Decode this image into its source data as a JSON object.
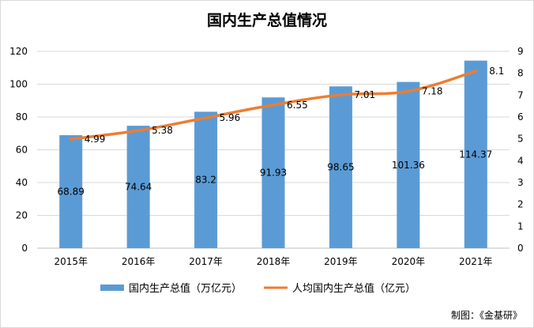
{
  "chart_data": {
    "type": "bar+line",
    "title": "国内生产总值情况",
    "categories": [
      "2015年",
      "2016年",
      "2017年",
      "2018年",
      "2019年",
      "2020年",
      "2021年"
    ],
    "series": [
      {
        "name": "国内生产总值（万亿元）",
        "type": "bar",
        "axis": "left",
        "color": "#5b9bd5",
        "values": [
          68.89,
          74.64,
          83.2,
          91.93,
          98.65,
          101.36,
          114.37
        ],
        "value_labels": [
          "68.89",
          "74.64",
          "83.2",
          "91.93",
          "98.65",
          "101.36",
          "114.37"
        ]
      },
      {
        "name": "人均国内生产总值（亿元）",
        "type": "line",
        "axis": "right",
        "color": "#ed7d31",
        "values": [
          4.99,
          5.38,
          5.96,
          6.55,
          7.01,
          7.18,
          8.1
        ],
        "value_labels": [
          "4.99",
          "5.38",
          "5.96",
          "6.55",
          "7.01",
          "7.18",
          "8.1"
        ]
      }
    ],
    "left_axis": {
      "range": [
        0,
        120
      ],
      "ticks": [
        "0",
        "20",
        "40",
        "60",
        "80",
        "100",
        "120"
      ]
    },
    "right_axis": {
      "range": [
        0,
        9
      ],
      "ticks": [
        "0",
        "1",
        "2",
        "3",
        "4",
        "5",
        "6",
        "7",
        "8",
        "9"
      ]
    },
    "grid": true,
    "legend_position": "bottom"
  },
  "credit": "制图：《金基研》"
}
